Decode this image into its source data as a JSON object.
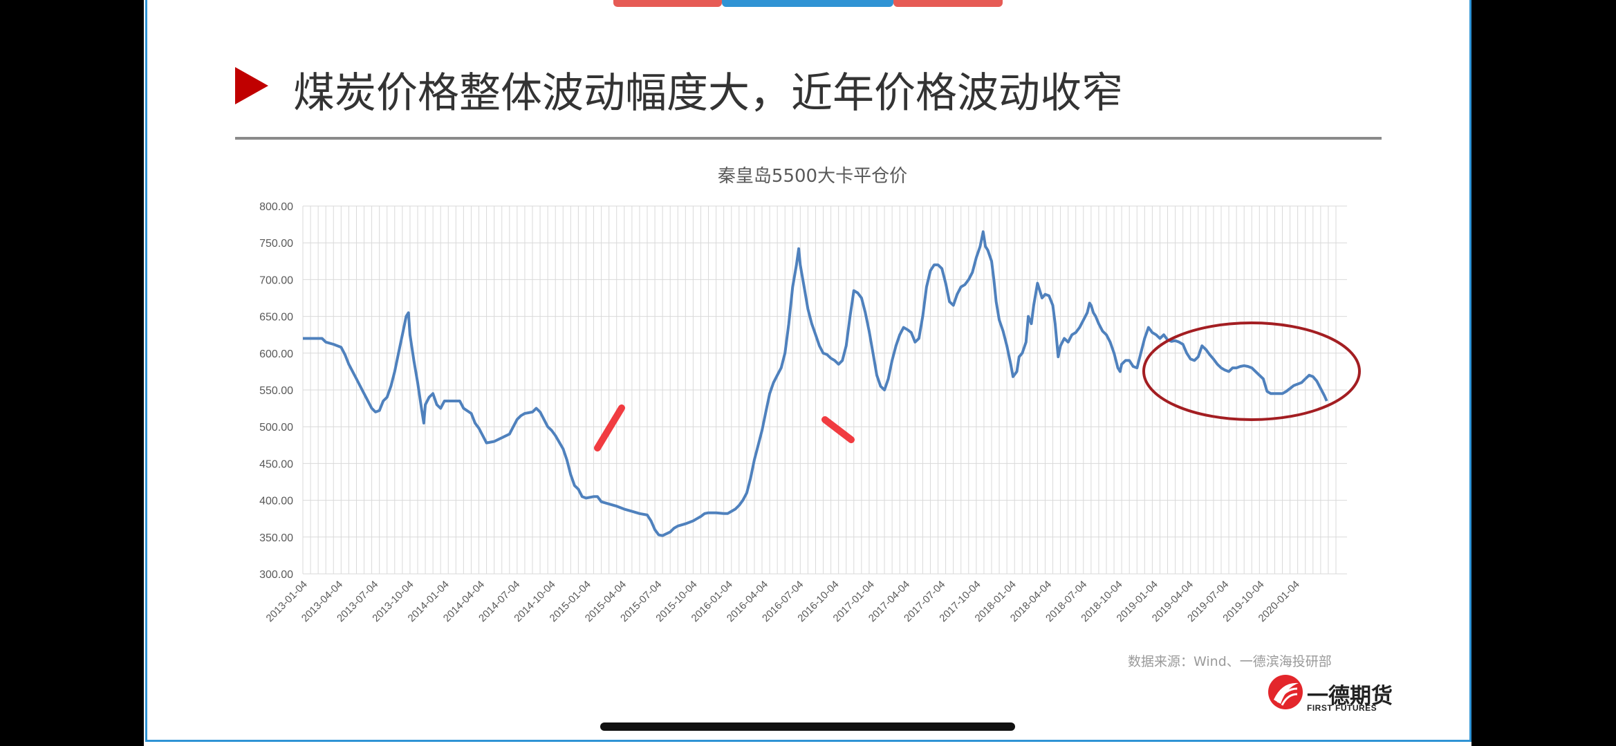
{
  "slide": {
    "title": "煤炭价格整体波动幅度大，近年价格波动收窄",
    "source_note": "数据来源：Wind、一德滨海投研部",
    "logo_name": "一德期货",
    "logo_sub": "FIRST FUTURES",
    "accent_red": "#c00000",
    "frame_blue": "#2f93d4"
  },
  "chart_data": {
    "type": "line",
    "title": "秦皇岛5500大卡平仓价",
    "xlabel": "",
    "ylabel": "",
    "ylim": [
      300,
      800
    ],
    "yticks": [
      "800.00",
      "750.00",
      "700.00",
      "650.00",
      "600.00",
      "550.00",
      "500.00",
      "450.00",
      "400.00",
      "350.00",
      "300.00"
    ],
    "xticks": [
      "2013-01-04",
      "2013-04-04",
      "2013-07-04",
      "2013-10-04",
      "2014-01-04",
      "2014-04-04",
      "2014-07-04",
      "2014-10-04",
      "2015-01-04",
      "2015-04-04",
      "2015-07-04",
      "2015-10-04",
      "2016-01-04",
      "2016-04-04",
      "2016-07-04",
      "2016-10-04",
      "2017-01-04",
      "2017-04-04",
      "2017-07-04",
      "2017-10-04",
      "2018-01-04",
      "2018-04-04",
      "2018-07-04",
      "2018-10-04",
      "2019-01-04",
      "2019-04-04",
      "2019-07-04",
      "2019-10-04",
      "2020-01-04"
    ],
    "grid": true,
    "line_color": "#4f81bd",
    "series": [
      {
        "points": [
          [
            0,
            620
          ],
          [
            2.5,
            620
          ],
          [
            3,
            615
          ],
          [
            4,
            612
          ],
          [
            5,
            608
          ],
          [
            5.5,
            598
          ],
          [
            6,
            585
          ],
          [
            7,
            565
          ],
          [
            8,
            545
          ],
          [
            9,
            525
          ],
          [
            9.5,
            520
          ],
          [
            10,
            522
          ],
          [
            10.5,
            535
          ],
          [
            11,
            540
          ],
          [
            11.5,
            555
          ],
          [
            12,
            575
          ],
          [
            12.5,
            600
          ],
          [
            13,
            625
          ],
          [
            13.5,
            650
          ],
          [
            13.8,
            655
          ],
          [
            14,
            625
          ],
          [
            14.5,
            590
          ],
          [
            15,
            560
          ],
          [
            15.5,
            525
          ],
          [
            15.8,
            505
          ],
          [
            16,
            530
          ],
          [
            16.5,
            540
          ],
          [
            17,
            545
          ],
          [
            17.5,
            530
          ],
          [
            18,
            525
          ],
          [
            18.5,
            535
          ],
          [
            19,
            535
          ],
          [
            20,
            535
          ],
          [
            20.5,
            535
          ],
          [
            21,
            525
          ],
          [
            22,
            518
          ],
          [
            22.5,
            505
          ],
          [
            23,
            498
          ],
          [
            23.5,
            488
          ],
          [
            24,
            478
          ],
          [
            25,
            480
          ],
          [
            26,
            485
          ],
          [
            27,
            490
          ],
          [
            27.5,
            500
          ],
          [
            28,
            510
          ],
          [
            28.5,
            515
          ],
          [
            29,
            518
          ],
          [
            30,
            520
          ],
          [
            30.5,
            525
          ],
          [
            31,
            520
          ],
          [
            31.5,
            510
          ],
          [
            32,
            500
          ],
          [
            32.5,
            495
          ],
          [
            33,
            488
          ],
          [
            34,
            470
          ],
          [
            34.5,
            455
          ],
          [
            35,
            435
          ],
          [
            35.5,
            420
          ],
          [
            36,
            415
          ],
          [
            36.5,
            405
          ],
          [
            37,
            403
          ],
          [
            38,
            405
          ],
          [
            38.5,
            405
          ],
          [
            39,
            398
          ],
          [
            40,
            395
          ],
          [
            41,
            392
          ],
          [
            42,
            388
          ],
          [
            43,
            385
          ],
          [
            44,
            382
          ],
          [
            45,
            380
          ],
          [
            45.5,
            372
          ],
          [
            46,
            360
          ],
          [
            46.5,
            353
          ],
          [
            47,
            352
          ],
          [
            48,
            357
          ],
          [
            48.5,
            362
          ],
          [
            49,
            365
          ],
          [
            50,
            368
          ],
          [
            50.5,
            370
          ],
          [
            51,
            372
          ],
          [
            51.5,
            375
          ],
          [
            52,
            378
          ],
          [
            52.5,
            382
          ],
          [
            53,
            383
          ],
          [
            53.5,
            383
          ],
          [
            54,
            383
          ],
          [
            55,
            382
          ],
          [
            55.5,
            382
          ],
          [
            56,
            385
          ],
          [
            56.5,
            388
          ],
          [
            57,
            393
          ],
          [
            57.5,
            400
          ],
          [
            58,
            410
          ],
          [
            58.5,
            430
          ],
          [
            59,
            455
          ],
          [
            59.5,
            475
          ],
          [
            60,
            495
          ],
          [
            60.5,
            520
          ],
          [
            61,
            545
          ],
          [
            61.5,
            560
          ],
          [
            62,
            570
          ],
          [
            62.5,
            580
          ],
          [
            63,
            600
          ],
          [
            63.5,
            640
          ],
          [
            64,
            690
          ],
          [
            64.5,
            720
          ],
          [
            64.8,
            742
          ],
          [
            65,
            720
          ],
          [
            65.5,
            690
          ],
          [
            66,
            660
          ],
          [
            66.5,
            640
          ],
          [
            67,
            625
          ],
          [
            67.5,
            610
          ],
          [
            68,
            600
          ],
          [
            68.5,
            598
          ],
          [
            69,
            593
          ],
          [
            69.5,
            590
          ],
          [
            70,
            585
          ],
          [
            70.5,
            590
          ],
          [
            71,
            610
          ],
          [
            71.5,
            650
          ],
          [
            72,
            685
          ],
          [
            72.5,
            682
          ],
          [
            73,
            675
          ],
          [
            73.5,
            655
          ],
          [
            74,
            630
          ],
          [
            74.5,
            600
          ],
          [
            75,
            570
          ],
          [
            75.5,
            555
          ],
          [
            76,
            550
          ],
          [
            76.5,
            565
          ],
          [
            77,
            590
          ],
          [
            77.5,
            610
          ],
          [
            78,
            625
          ],
          [
            78.5,
            635
          ],
          [
            79,
            632
          ],
          [
            79.5,
            628
          ],
          [
            80,
            615
          ],
          [
            80.5,
            620
          ],
          [
            81,
            650
          ],
          [
            81.5,
            690
          ],
          [
            82,
            712
          ],
          [
            82.5,
            720
          ],
          [
            83,
            720
          ],
          [
            83.5,
            715
          ],
          [
            84,
            695
          ],
          [
            84.5,
            670
          ],
          [
            85,
            665
          ],
          [
            85.5,
            680
          ],
          [
            86,
            690
          ],
          [
            86.5,
            693
          ],
          [
            87,
            700
          ],
          [
            87.5,
            710
          ],
          [
            88,
            730
          ],
          [
            88.5,
            745
          ],
          [
            88.9,
            765
          ],
          [
            89.2,
            745
          ],
          [
            89.5,
            740
          ],
          [
            90,
            725
          ],
          [
            90.3,
            700
          ],
          [
            90.6,
            670
          ],
          [
            91,
            645
          ],
          [
            91.5,
            630
          ],
          [
            92,
            610
          ],
          [
            92.5,
            585
          ],
          [
            92.8,
            568
          ],
          [
            93.3,
            575
          ],
          [
            93.6,
            595
          ],
          [
            94,
            600
          ],
          [
            94.5,
            615
          ],
          [
            94.8,
            650
          ],
          [
            95.2,
            640
          ],
          [
            95.5,
            665
          ],
          [
            96,
            695
          ],
          [
            96.3,
            685
          ],
          [
            96.6,
            675
          ],
          [
            97,
            680
          ],
          [
            97.5,
            678
          ],
          [
            98,
            665
          ],
          [
            98.3,
            640
          ],
          [
            98.7,
            595
          ],
          [
            99,
            610
          ],
          [
            99.5,
            620
          ],
          [
            100,
            615
          ],
          [
            100.5,
            625
          ],
          [
            101,
            628
          ],
          [
            101.5,
            635
          ],
          [
            102,
            645
          ],
          [
            102.5,
            655
          ],
          [
            102.8,
            668
          ],
          [
            103,
            665
          ],
          [
            103.3,
            655
          ],
          [
            103.6,
            650
          ],
          [
            104,
            640
          ],
          [
            104.5,
            630
          ],
          [
            105,
            625
          ],
          [
            105.5,
            615
          ],
          [
            106,
            600
          ],
          [
            106.5,
            580
          ],
          [
            106.8,
            575
          ],
          [
            107,
            585
          ],
          [
            107.5,
            590
          ],
          [
            108,
            590
          ],
          [
            108.5,
            582
          ],
          [
            109,
            580
          ],
          [
            109.5,
            600
          ],
          [
            110,
            620
          ],
          [
            110.5,
            635
          ],
          [
            111,
            628
          ],
          [
            111.5,
            625
          ],
          [
            112,
            620
          ],
          [
            112.5,
            625
          ],
          [
            113,
            618
          ],
          [
            113.5,
            616
          ],
          [
            114,
            617
          ],
          [
            114.5,
            615
          ],
          [
            115,
            612
          ],
          [
            115.5,
            600
          ],
          [
            116,
            592
          ],
          [
            116.5,
            590
          ],
          [
            117,
            595
          ],
          [
            117.5,
            610
          ],
          [
            118,
            605
          ],
          [
            118.5,
            598
          ],
          [
            119,
            592
          ],
          [
            119.5,
            585
          ],
          [
            120,
            580
          ],
          [
            120.5,
            577
          ],
          [
            121,
            575
          ],
          [
            121.5,
            580
          ],
          [
            122,
            580
          ],
          [
            122.5,
            582
          ],
          [
            123,
            583
          ],
          [
            123.5,
            582
          ],
          [
            124,
            580
          ],
          [
            124.5,
            575
          ],
          [
            125,
            570
          ],
          [
            125.5,
            565
          ],
          [
            126,
            548
          ],
          [
            126.5,
            545
          ],
          [
            127,
            545
          ],
          [
            127.5,
            545
          ],
          [
            128,
            545
          ],
          [
            128.5,
            548
          ],
          [
            129,
            552
          ],
          [
            129.5,
            556
          ],
          [
            130,
            558
          ],
          [
            130.5,
            560
          ],
          [
            131,
            565
          ],
          [
            131.5,
            570
          ],
          [
            132,
            568
          ],
          [
            132.5,
            562
          ],
          [
            133,
            552
          ],
          [
            133.5,
            542
          ],
          [
            133.8,
            535
          ]
        ]
      }
    ]
  }
}
